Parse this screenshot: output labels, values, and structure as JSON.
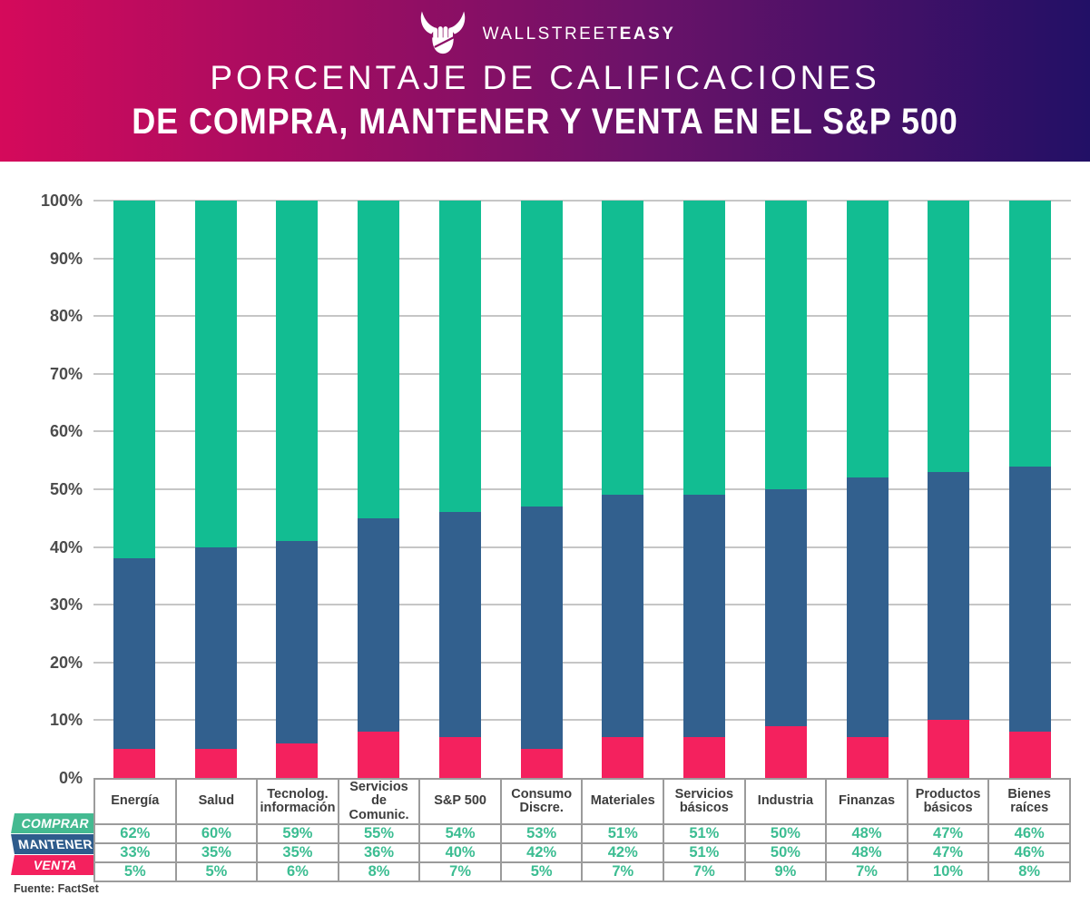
{
  "header": {
    "brand": {
      "name_light": "WALLSTREET",
      "name_bold": "EASY"
    },
    "title_line1": "PORCENTAJE DE CALIFICACIONES",
    "title_line2": "DE COMPRA, MANTENER Y VENTA EN EL S&P 500"
  },
  "chart_data": {
    "type": "bar",
    "stacked": true,
    "title": "Porcentaje de calificaciones de compra, mantener y venta en el S&P 500",
    "categories": [
      "Energía",
      "Salud",
      "Tecnolog. información",
      "Servicios de Comunic.",
      "S&P 500",
      "Consumo Discre.",
      "Materiales",
      "Servicios básicos",
      "Industria",
      "Finanzas",
      "Productos básicos",
      "Bienes raíces"
    ],
    "series": [
      {
        "name": "COMPRAR",
        "color": "#12bd92",
        "values": [
          62,
          60,
          59,
          55,
          54,
          53,
          51,
          51,
          50,
          48,
          47,
          46
        ]
      },
      {
        "name": "MANTENER",
        "color": "#32608e",
        "values": [
          33,
          35,
          35,
          36,
          40,
          42,
          42,
          51,
          50,
          48,
          47,
          46
        ]
      },
      {
        "name": "VENTA",
        "color": "#f4215e",
        "values": [
          5,
          5,
          6,
          8,
          7,
          5,
          7,
          7,
          9,
          7,
          10,
          8
        ]
      }
    ],
    "stack_order_bottom_to_top": [
      "VENTA",
      "MANTENER",
      "COMPRAR"
    ],
    "ylim": [
      0,
      100
    ],
    "y_ticks": [
      "0%",
      "10%",
      "20%",
      "30%",
      "40%",
      "50%",
      "60%",
      "70%",
      "80%",
      "90%",
      "100%"
    ],
    "grid": true,
    "legend_position": "table-row-labels-left"
  },
  "table": {
    "row_labels": [
      "COMPRAR",
      "MANTENER",
      "VENTA"
    ],
    "badge_colors": [
      "#44ba91",
      "#2e5c8c",
      "#f4215e"
    ],
    "value_suffix": "%"
  },
  "source": "Fuente: FactSet",
  "theme": {
    "gradient_left": "#d50a5b",
    "gradient_mid": "#6d1269",
    "gradient_right": "#221066",
    "grid_color": "#c6c6c6",
    "axis_text": "#4c4c4c",
    "table_border": "#9b9b9b",
    "table_header_text": "#3d3d3d",
    "value_text": "#3cbd92"
  }
}
